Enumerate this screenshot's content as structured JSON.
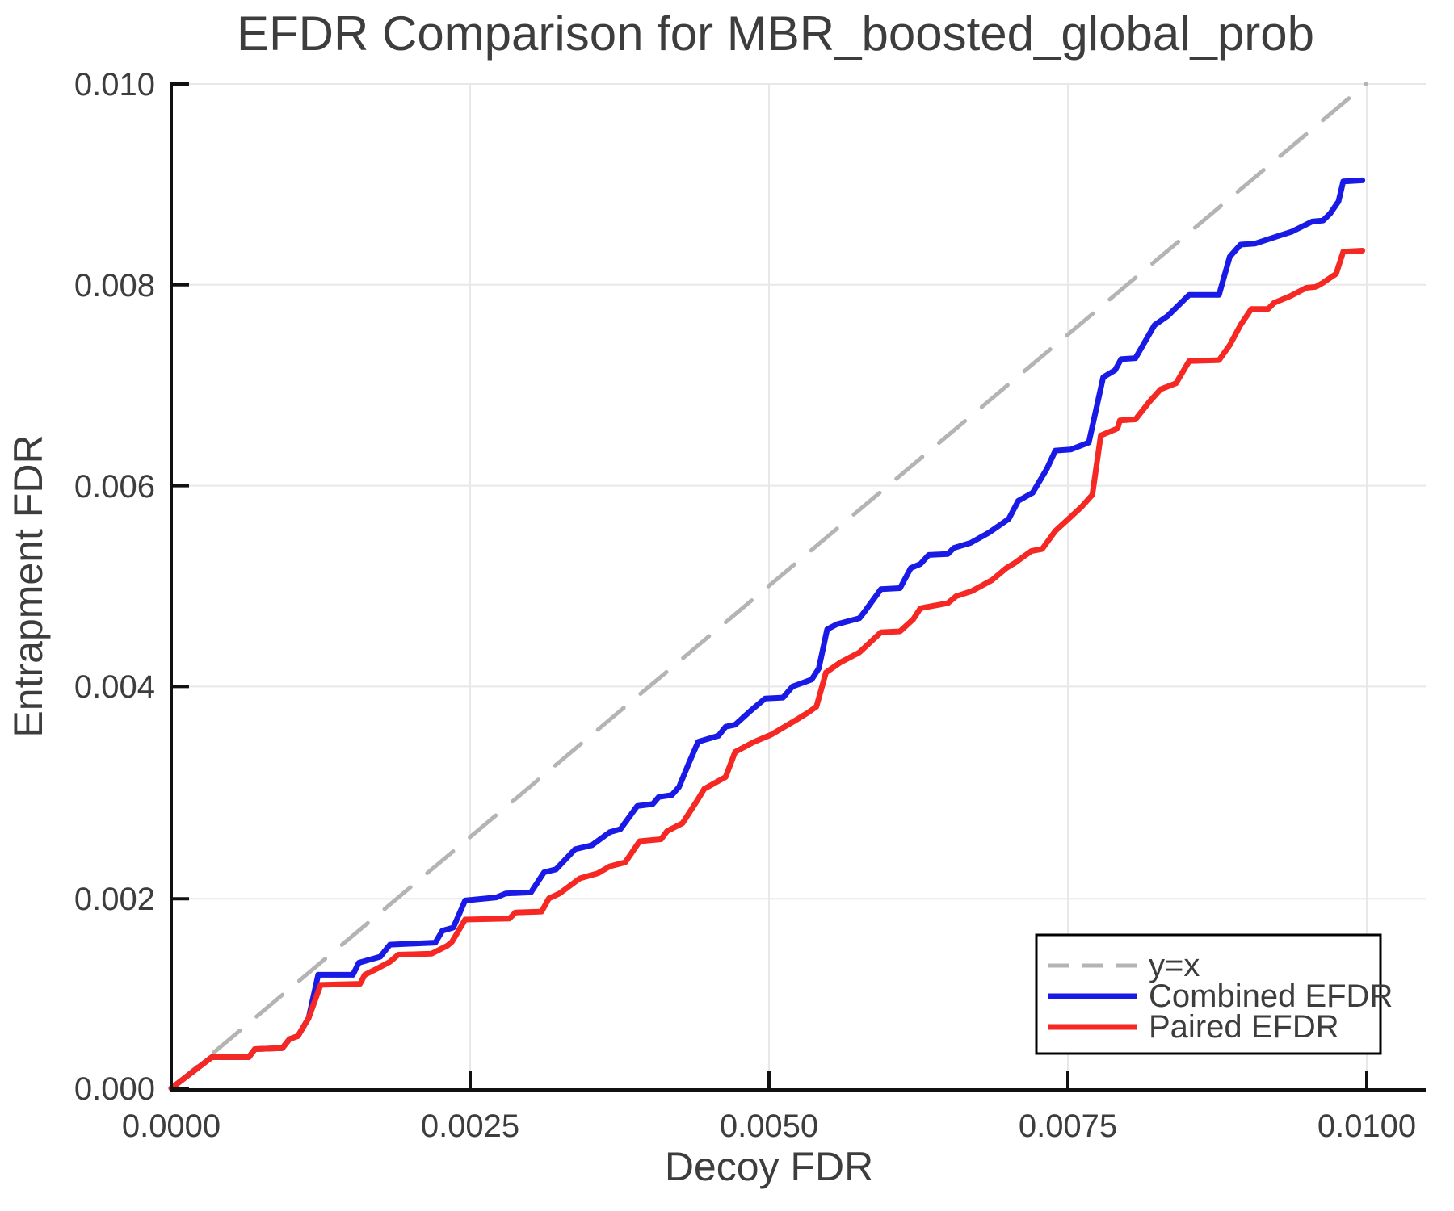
{
  "chart": {
    "x_tick_labels": [
      "0.0000",
      "0.0025",
      "0.0050",
      "0.0075",
      "0.0100"
    ],
    "y_tick_labels": [
      "0.010",
      "0.008",
      "0.006",
      "0.004",
      "0.002",
      "0.000"
    ],
    "colors": {
      "combined_efdr": "#1a1ae6",
      "paired_efdr": "#f52823",
      "identity_line": "#b4b4b4",
      "grid": "#e8e8e8",
      "axis": "#111111",
      "text": "#3d3d3d",
      "legend_border": "#000000",
      "background": "#ffffff"
    }
  },
  "chart_data": {
    "type": "line",
    "title": "EFDR Comparison for MBR_boosted_global_prob",
    "xlabel": "Decoy FDR",
    "ylabel": "Entrapment FDR",
    "xlim": [
      0.0,
      0.0105
    ],
    "ylim": [
      0.0,
      0.01
    ],
    "xticks": [
      0.0,
      0.0025,
      0.005,
      0.0075,
      0.01
    ],
    "yticks": [
      0.0,
      0.002,
      0.004,
      0.006,
      0.008,
      0.01
    ],
    "grid": true,
    "legend_position": "lower right",
    "series": [
      {
        "name": "y=x",
        "color": "#b4b4b4",
        "style": "dashed",
        "points": [
          [
            0.0,
            0.0
          ],
          [
            0.01,
            0.01
          ]
        ]
      },
      {
        "name": "Combined EFDR",
        "color": "#1a1ae6",
        "style": "solid",
        "points": [
          [
            0.0,
            0.0
          ],
          [
            0.00034,
            0.00031
          ],
          [
            0.00065,
            0.00031
          ],
          [
            0.0007,
            0.00039
          ],
          [
            0.00093,
            0.0004
          ],
          [
            0.00099,
            0.00049
          ],
          [
            0.00106,
            0.00052
          ],
          [
            0.00115,
            0.0007
          ],
          [
            0.00123,
            0.00113
          ],
          [
            0.00152,
            0.00113
          ],
          [
            0.00157,
            0.00125
          ],
          [
            0.00166,
            0.00128
          ],
          [
            0.00175,
            0.00131
          ],
          [
            0.00183,
            0.00143
          ],
          [
            0.00221,
            0.00145
          ],
          [
            0.00227,
            0.00157
          ],
          [
            0.00236,
            0.0016
          ],
          [
            0.00246,
            0.00187
          ],
          [
            0.00272,
            0.0019
          ],
          [
            0.0028,
            0.00194
          ],
          [
            0.00301,
            0.00195
          ],
          [
            0.00312,
            0.00215
          ],
          [
            0.00322,
            0.00218
          ],
          [
            0.00338,
            0.00238
          ],
          [
            0.00352,
            0.00242
          ],
          [
            0.00367,
            0.00255
          ],
          [
            0.00376,
            0.00258
          ],
          [
            0.0039,
            0.00281
          ],
          [
            0.00403,
            0.00283
          ],
          [
            0.00408,
            0.0029
          ],
          [
            0.00419,
            0.00292
          ],
          [
            0.00425,
            0.003
          ],
          [
            0.00433,
            0.00323
          ],
          [
            0.00441,
            0.00345
          ],
          [
            0.00458,
            0.00351
          ],
          [
            0.00464,
            0.0036
          ],
          [
            0.00472,
            0.00362
          ],
          [
            0.00485,
            0.00376
          ],
          [
            0.00497,
            0.00388
          ],
          [
            0.00512,
            0.00389
          ],
          [
            0.0052,
            0.004
          ],
          [
            0.00536,
            0.00407
          ],
          [
            0.00542,
            0.00418
          ],
          [
            0.00549,
            0.00457
          ],
          [
            0.00557,
            0.00462
          ],
          [
            0.00576,
            0.00468
          ],
          [
            0.0058,
            0.00474
          ],
          [
            0.00594,
            0.00497
          ],
          [
            0.0061,
            0.00498
          ],
          [
            0.00619,
            0.00518
          ],
          [
            0.00627,
            0.00522
          ],
          [
            0.00634,
            0.00531
          ],
          [
            0.0065,
            0.00532
          ],
          [
            0.00655,
            0.00538
          ],
          [
            0.00669,
            0.00543
          ],
          [
            0.00684,
            0.00553
          ],
          [
            0.00701,
            0.00567
          ],
          [
            0.00709,
            0.00585
          ],
          [
            0.00721,
            0.00593
          ],
          [
            0.00733,
            0.00617
          ],
          [
            0.0074,
            0.00635
          ],
          [
            0.00753,
            0.00636
          ],
          [
            0.00768,
            0.00643
          ],
          [
            0.0078,
            0.00708
          ],
          [
            0.0079,
            0.00715
          ],
          [
            0.00795,
            0.00726
          ],
          [
            0.00807,
            0.00727
          ],
          [
            0.00823,
            0.0076
          ],
          [
            0.00834,
            0.00769
          ],
          [
            0.00852,
            0.0079
          ],
          [
            0.00877,
            0.0079
          ],
          [
            0.00886,
            0.00828
          ],
          [
            0.00895,
            0.0084
          ],
          [
            0.00907,
            0.00841
          ],
          [
            0.00925,
            0.00848
          ],
          [
            0.00938,
            0.00853
          ],
          [
            0.00955,
            0.00863
          ],
          [
            0.00964,
            0.00864
          ],
          [
            0.0097,
            0.00871
          ],
          [
            0.00977,
            0.00883
          ],
          [
            0.00981,
            0.00903
          ],
          [
            0.00997,
            0.00904
          ]
        ]
      },
      {
        "name": "Paired EFDR",
        "color": "#f52823",
        "style": "solid",
        "points": [
          [
            0.0,
            0.0
          ],
          [
            0.00034,
            0.00031
          ],
          [
            0.00065,
            0.00031
          ],
          [
            0.0007,
            0.00039
          ],
          [
            0.00093,
            0.0004
          ],
          [
            0.00099,
            0.00049
          ],
          [
            0.00106,
            0.00052
          ],
          [
            0.00115,
            0.0007
          ],
          [
            0.00125,
            0.00103
          ],
          [
            0.00158,
            0.00104
          ],
          [
            0.00162,
            0.00113
          ],
          [
            0.00172,
            0.00119
          ],
          [
            0.00183,
            0.00126
          ],
          [
            0.0019,
            0.00133
          ],
          [
            0.00218,
            0.00134
          ],
          [
            0.00231,
            0.00142
          ],
          [
            0.00235,
            0.00146
          ],
          [
            0.00246,
            0.00168
          ],
          [
            0.00283,
            0.00169
          ],
          [
            0.00288,
            0.00175
          ],
          [
            0.0031,
            0.00176
          ],
          [
            0.00316,
            0.00189
          ],
          [
            0.00325,
            0.00194
          ],
          [
            0.00342,
            0.00209
          ],
          [
            0.00357,
            0.00214
          ],
          [
            0.00367,
            0.00221
          ],
          [
            0.0038,
            0.00225
          ],
          [
            0.00392,
            0.00246
          ],
          [
            0.0041,
            0.00248
          ],
          [
            0.00415,
            0.00256
          ],
          [
            0.00428,
            0.00264
          ],
          [
            0.00441,
            0.00288
          ],
          [
            0.00446,
            0.00298
          ],
          [
            0.00464,
            0.0031
          ],
          [
            0.00472,
            0.00335
          ],
          [
            0.00488,
            0.00345
          ],
          [
            0.00502,
            0.00352
          ],
          [
            0.00522,
            0.00366
          ],
          [
            0.00533,
            0.00374
          ],
          [
            0.0054,
            0.0038
          ],
          [
            0.00548,
            0.00414
          ],
          [
            0.0056,
            0.00424
          ],
          [
            0.00576,
            0.00434
          ],
          [
            0.00594,
            0.00454
          ],
          [
            0.0061,
            0.00455
          ],
          [
            0.00621,
            0.00467
          ],
          [
            0.00627,
            0.00478
          ],
          [
            0.0065,
            0.00483
          ],
          [
            0.00657,
            0.0049
          ],
          [
            0.0067,
            0.00495
          ],
          [
            0.00687,
            0.00506
          ],
          [
            0.00699,
            0.00518
          ],
          [
            0.00706,
            0.00523
          ],
          [
            0.0072,
            0.00535
          ],
          [
            0.00729,
            0.00537
          ],
          [
            0.0074,
            0.00555
          ],
          [
            0.00751,
            0.00567
          ],
          [
            0.00762,
            0.00579
          ],
          [
            0.00771,
            0.00591
          ],
          [
            0.00778,
            0.0065
          ],
          [
            0.00792,
            0.00657
          ],
          [
            0.00794,
            0.00665
          ],
          [
            0.00807,
            0.00666
          ],
          [
            0.00819,
            0.00684
          ],
          [
            0.00828,
            0.00696
          ],
          [
            0.00841,
            0.00702
          ],
          [
            0.00852,
            0.00724
          ],
          [
            0.00877,
            0.00725
          ],
          [
            0.00886,
            0.0074
          ],
          [
            0.00895,
            0.0076
          ],
          [
            0.00904,
            0.00776
          ],
          [
            0.00918,
            0.00776
          ],
          [
            0.00923,
            0.00782
          ],
          [
            0.00937,
            0.00789
          ],
          [
            0.0095,
            0.00797
          ],
          [
            0.00958,
            0.00798
          ],
          [
            0.00964,
            0.00802
          ],
          [
            0.00975,
            0.00811
          ],
          [
            0.00981,
            0.00833
          ],
          [
            0.00997,
            0.00834
          ]
        ]
      }
    ]
  }
}
